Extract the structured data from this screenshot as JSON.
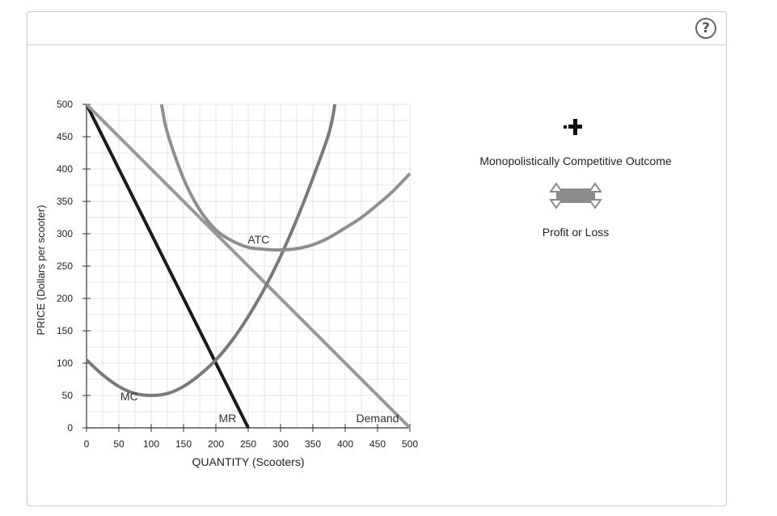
{
  "header": {
    "help_label": "?"
  },
  "palette": {
    "title": "",
    "tools": [
      {
        "label": "Monopolistically Competitive Outcome",
        "icon": "crosshair-plus-icon"
      },
      {
        "label": "Profit or Loss",
        "icon": "shaded-rectangle-icon"
      }
    ]
  },
  "chart_data": {
    "type": "line",
    "title": "",
    "xlabel": "QUANTITY (Scooters)",
    "ylabel": "PRICE (Dollars per scooter)",
    "xlim": [
      0,
      500
    ],
    "ylim": [
      0,
      500
    ],
    "xticks": [
      0,
      50,
      100,
      150,
      200,
      250,
      300,
      350,
      400,
      450,
      500
    ],
    "yticks": [
      0,
      50,
      100,
      150,
      200,
      250,
      300,
      350,
      400,
      450,
      500
    ],
    "grid": true,
    "series": [
      {
        "name": "MR",
        "color": "#1a1a1a",
        "x": [
          0,
          250
        ],
        "y": [
          500,
          0
        ]
      },
      {
        "name": "Demand",
        "color": "#999999",
        "x": [
          0,
          500
        ],
        "y": [
          500,
          0
        ]
      },
      {
        "name": "MC",
        "color": "#7a7a7a",
        "x": [
          0,
          25,
          50,
          75,
          100,
          125,
          150,
          175,
          200,
          225,
          250,
          275,
          300,
          325,
          350,
          375,
          384
        ],
        "y": [
          105,
          82,
          64,
          53,
          50,
          53,
          64,
          82,
          105,
          135,
          172,
          215,
          265,
          322,
          386,
          456,
          500
        ]
      },
      {
        "name": "ATC",
        "color": "#8f8f8f",
        "x": [
          116,
          125,
          150,
          175,
          200,
          225,
          250,
          275,
          300,
          325,
          350,
          375,
          400,
          425,
          450,
          475,
          500
        ],
        "y": [
          500,
          456,
          385,
          337,
          306,
          289,
          279,
          276,
          275,
          277,
          283,
          294,
          309,
          325,
          345,
          367,
          393
        ]
      }
    ],
    "curve_labels": [
      {
        "text": "MC",
        "series": "MC",
        "at": [
          66,
          49
        ]
      },
      {
        "text": "MR",
        "series": "MR",
        "at": [
          218,
          15
        ]
      },
      {
        "text": "Demand",
        "series": "Demand",
        "at": [
          450,
          15
        ]
      },
      {
        "text": "ATC",
        "series": "ATC",
        "at": [
          266,
          291
        ]
      }
    ]
  }
}
